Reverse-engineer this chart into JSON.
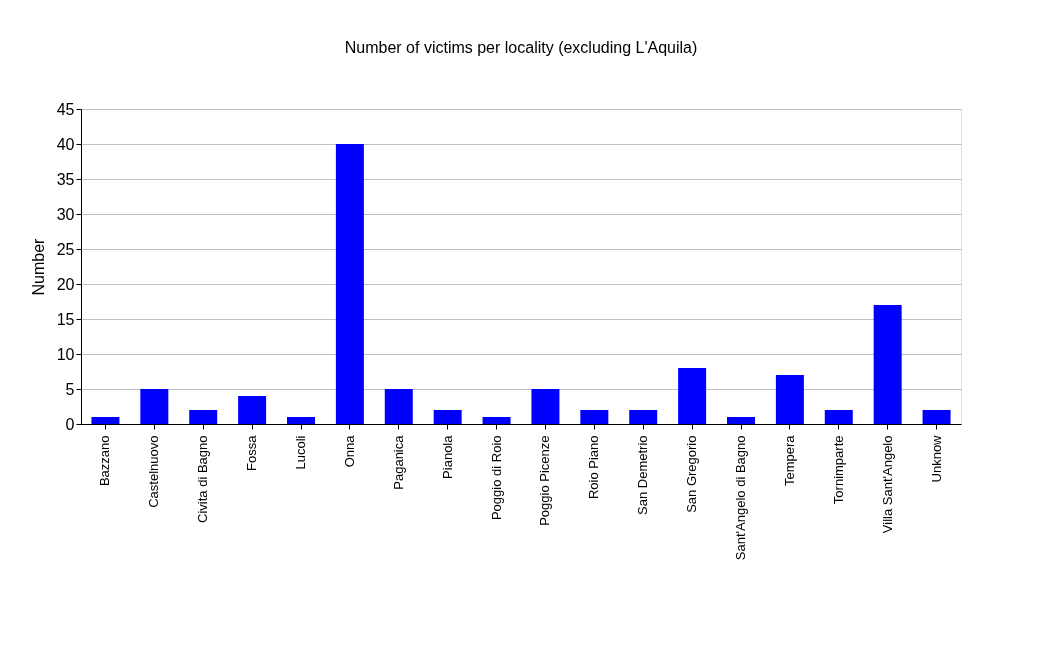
{
  "chart_data": {
    "type": "bar",
    "title": "Number of victims per locality (excluding L'Aquila)",
    "ylabel": "Number",
    "categories": [
      "Bazzano",
      "Castelnuovo",
      "Civita di Bagno",
      "Fossa",
      "Lucoli",
      "Onna",
      "Paganica",
      "Pianola",
      "Poggio di Roio",
      "Poggio Picenze",
      "Roio Piano",
      "San Demetrio",
      "San Gregorio",
      "Sant'Angelo di Bagno",
      "Tempera",
      "Tornimparte",
      "Villa Sant'Angelo",
      "Unknow"
    ],
    "values": [
      1,
      5,
      2,
      4,
      1,
      40,
      5,
      2,
      1,
      5,
      2,
      2,
      8,
      1,
      7,
      2,
      17,
      2
    ],
    "color": "#0000ff",
    "ylim": [
      0,
      45
    ],
    "yticks": [
      0,
      5,
      10,
      15,
      20,
      25,
      30,
      35,
      40,
      45
    ],
    "grid": "y"
  }
}
